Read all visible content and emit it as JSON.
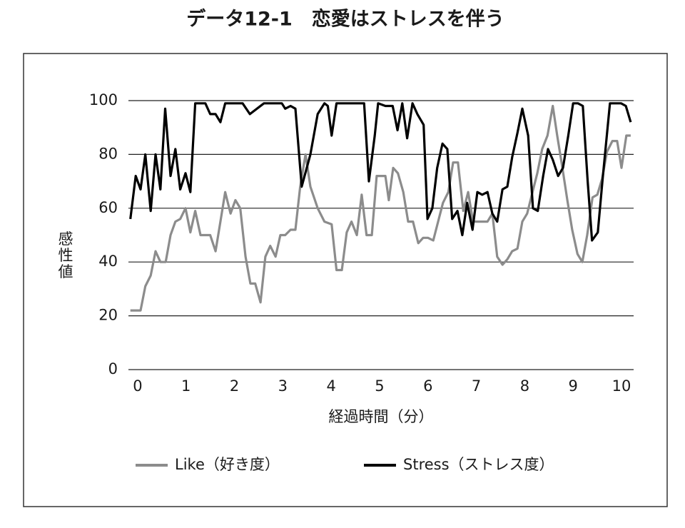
{
  "chart_data": {
    "type": "line",
    "title": "データ12-1　恋愛はストレスを伴う",
    "xlabel": "経過時間（分）",
    "ylabel": "感性値",
    "xlim": [
      -0.19,
      10.25
    ],
    "xticks": [
      0,
      1,
      2,
      3,
      4,
      5,
      6,
      7,
      8,
      9,
      10
    ],
    "ylim": [
      0,
      100
    ],
    "yticks": [
      0,
      20,
      40,
      60,
      80,
      100
    ],
    "grid": true,
    "legend": "bottom",
    "series": [
      {
        "name": "Like（好き度）",
        "color": "#8c8c8c",
        "x": [
          -0.15,
          0.06,
          0.16,
          0.27,
          0.37,
          0.47,
          0.58,
          0.68,
          0.78,
          0.88,
          0.99,
          1.09,
          1.19,
          1.3,
          1.5,
          1.61,
          1.71,
          1.81,
          1.92,
          2.02,
          2.12,
          2.23,
          2.33,
          2.43,
          2.54,
          2.64,
          2.74,
          2.85,
          2.95,
          3.05,
          3.16,
          3.26,
          3.36,
          3.47,
          3.57,
          3.72,
          3.86,
          4.01,
          4.11,
          4.22,
          4.32,
          4.42,
          4.53,
          4.63,
          4.73,
          4.84,
          4.94,
          5.12,
          5.19,
          5.28,
          5.38,
          5.49,
          5.59,
          5.69,
          5.8,
          5.9,
          6.0,
          6.11,
          6.21,
          6.31,
          6.42,
          6.52,
          6.62,
          6.73,
          6.83,
          6.93,
          7.12,
          7.23,
          7.33,
          7.43,
          7.54,
          7.64,
          7.74,
          7.85,
          7.95,
          8.05,
          8.16,
          8.26,
          8.36,
          8.47,
          8.58,
          8.67,
          8.77,
          8.88,
          8.98,
          9.09,
          9.19,
          9.29,
          9.4,
          9.5,
          9.6,
          9.7,
          9.81,
          9.91,
          10.0,
          10.1,
          10.19
        ],
        "values": [
          22,
          22,
          31,
          35,
          44,
          40,
          40,
          50,
          55,
          56,
          60,
          51,
          59,
          50,
          50,
          44,
          55,
          66,
          58,
          63,
          60,
          42,
          32,
          32,
          25,
          42,
          46,
          42,
          50,
          50,
          52,
          52,
          68,
          80,
          68,
          60,
          55,
          54,
          37,
          37,
          51,
          55,
          50,
          65,
          50,
          50,
          72,
          72,
          63,
          75,
          73,
          66,
          55,
          55,
          47,
          49,
          49,
          48,
          55,
          62,
          66,
          77,
          77,
          59,
          66,
          55,
          55,
          55,
          58,
          42,
          39,
          41,
          44,
          45,
          55,
          58,
          66,
          73,
          82,
          87,
          98,
          87,
          76,
          63,
          52,
          43,
          40,
          50,
          64,
          65,
          71,
          81,
          85,
          85,
          75,
          87,
          87
        ]
      },
      {
        "name": "Stress（ストレス度）",
        "color": "#000000",
        "x": [
          -0.15,
          -0.04,
          0.06,
          0.16,
          0.27,
          0.37,
          0.47,
          0.57,
          0.68,
          0.78,
          0.88,
          0.99,
          1.09,
          1.19,
          1.4,
          1.5,
          1.61,
          1.71,
          1.81,
          2.17,
          2.32,
          2.61,
          2.98,
          3.05,
          3.16,
          3.26,
          3.39,
          3.57,
          3.72,
          3.86,
          3.93,
          4.01,
          4.11,
          4.68,
          4.78,
          4.9,
          4.97,
          5.12,
          5.27,
          5.37,
          5.47,
          5.57,
          5.68,
          5.78,
          5.91,
          5.99,
          6.09,
          6.19,
          6.3,
          6.4,
          6.5,
          6.61,
          6.71,
          6.81,
          6.92,
          7.02,
          7.12,
          7.23,
          7.33,
          7.43,
          7.54,
          7.64,
          7.74,
          7.85,
          7.95,
          8.07,
          8.17,
          8.27,
          8.38,
          8.48,
          8.58,
          8.69,
          8.79,
          8.9,
          9.0,
          9.1,
          9.2,
          9.3,
          9.39,
          9.51,
          9.61,
          9.76,
          9.99,
          10.09,
          10.19
        ],
        "values": [
          56,
          72,
          67,
          80,
          59,
          80,
          67,
          97,
          72,
          82,
          67,
          73,
          66,
          99,
          99,
          95,
          95,
          92,
          99,
          99,
          95,
          99,
          99,
          97,
          98,
          97,
          68,
          80,
          95,
          99,
          98,
          87,
          99,
          99,
          70,
          87,
          99,
          98,
          98,
          89,
          99,
          86,
          99,
          95,
          91,
          56,
          60,
          75,
          84,
          82,
          56,
          59,
          50,
          62,
          52,
          66,
          65,
          66,
          58,
          55,
          67,
          68,
          79,
          88,
          97,
          87,
          60,
          59,
          72,
          82,
          78,
          72,
          75,
          87,
          99,
          99,
          98,
          70,
          48,
          51,
          71,
          99,
          99,
          98,
          92
        ]
      }
    ]
  }
}
